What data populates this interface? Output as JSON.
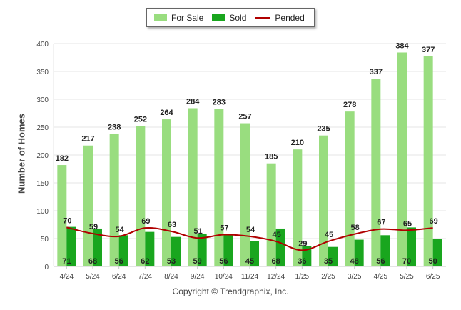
{
  "chart_data": {
    "type": "bar",
    "categories": [
      "4/24",
      "5/24",
      "6/24",
      "7/24",
      "8/24",
      "9/24",
      "10/24",
      "11/24",
      "12/24",
      "1/25",
      "2/25",
      "3/25",
      "4/25",
      "5/25",
      "6/25"
    ],
    "series": [
      {
        "name": "For Sale",
        "kind": "bar",
        "color": "#99dd7f",
        "values": [
          182,
          217,
          238,
          252,
          264,
          284,
          283,
          257,
          185,
          210,
          235,
          278,
          337,
          384,
          377
        ]
      },
      {
        "name": "Sold",
        "kind": "bar",
        "color": "#19a61e",
        "values": [
          71,
          68,
          56,
          62,
          53,
          59,
          56,
          45,
          68,
          36,
          35,
          48,
          56,
          70,
          50
        ]
      },
      {
        "name": "Pended",
        "kind": "line",
        "color": "#b00000",
        "values": [
          70,
          59,
          54,
          69,
          63,
          51,
          57,
          54,
          45,
          29,
          45,
          58,
          67,
          65,
          69
        ]
      }
    ],
    "xlabel": "",
    "ylabel": "Number of Homes",
    "ylim": [
      0,
      400
    ],
    "yticks": [
      0,
      50,
      100,
      150,
      200,
      250,
      300,
      350,
      400
    ],
    "grid": true,
    "legend_position": "top-center"
  },
  "footer": "Copyright © Trendgraphix, Inc."
}
